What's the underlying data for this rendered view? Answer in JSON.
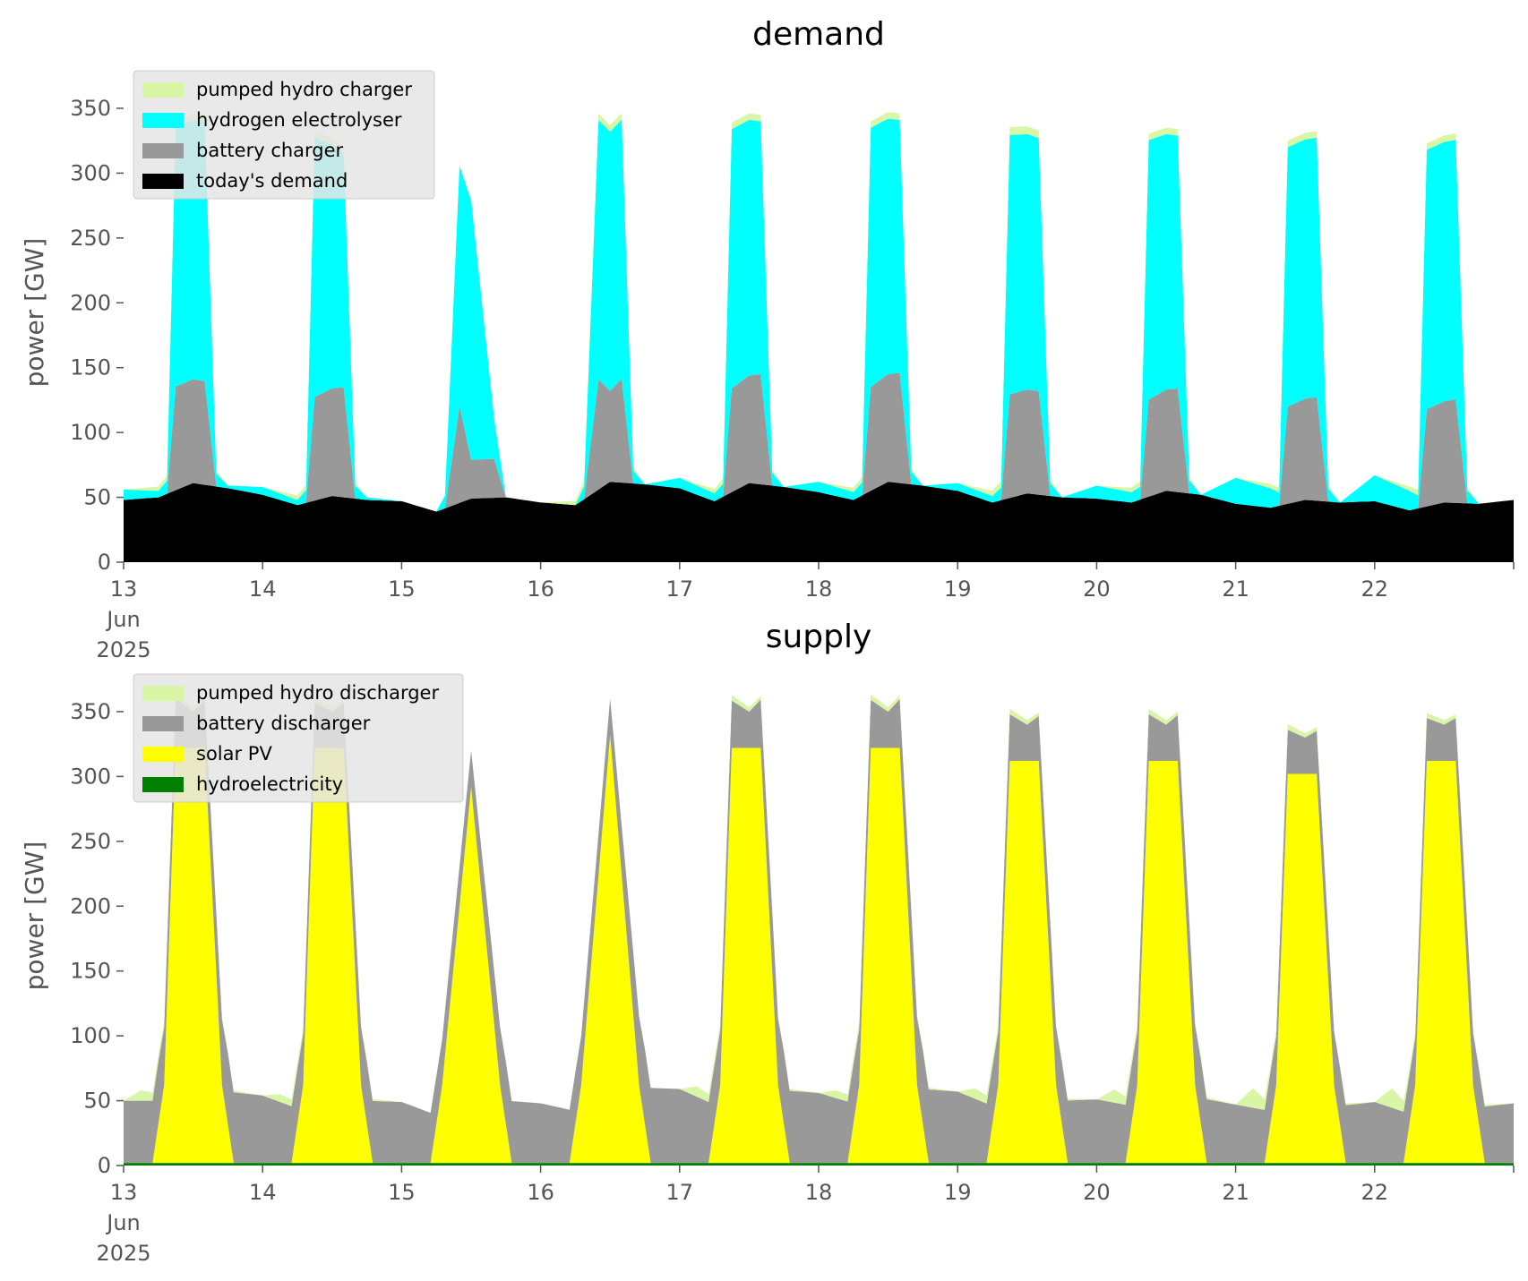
{
  "chart_data": [
    {
      "type": "area",
      "stacked": true,
      "title": "demand",
      "ylabel": "power [GW]",
      "ylim": [
        0,
        370
      ],
      "yticks": [
        0,
        50,
        100,
        150,
        200,
        250,
        300,
        350
      ],
      "xlim": [
        "2025-06-13 00:00",
        "2025-06-23 00:00"
      ],
      "xticks": [
        "13",
        "14",
        "15",
        "16",
        "17",
        "18",
        "19",
        "20",
        "21",
        "22"
      ],
      "xtick_first_sub": [
        "Jun",
        "2025"
      ],
      "grid": false,
      "legend_position": "top-left",
      "legend_order": [
        "pumped hydro charger",
        "hydrogen electrolyser",
        "battery charger",
        "today's demand"
      ],
      "series": [
        {
          "name": "today's demand",
          "color": "#000000",
          "x": [
            "13 00:00",
            "13 06:00",
            "13 12:00",
            "13 18:00",
            "14 00:00",
            "14 06:00",
            "14 12:00",
            "14 18:00",
            "15 00:00",
            "15 06:00",
            "15 12:00",
            "15 18:00",
            "16 00:00",
            "16 06:00",
            "16 12:00",
            "16 18:00",
            "17 00:00",
            "17 06:00",
            "17 12:00",
            "17 18:00",
            "18 00:00",
            "18 06:00",
            "18 12:00",
            "18 18:00",
            "19 00:00",
            "19 06:00",
            "19 12:00",
            "19 18:00",
            "20 00:00",
            "20 06:00",
            "20 12:00",
            "20 18:00",
            "21 00:00",
            "21 06:00",
            "21 12:00",
            "21 18:00",
            "22 00:00",
            "22 06:00",
            "22 12:00",
            "22 18:00",
            "23 00:00"
          ],
          "y": [
            48,
            50,
            61,
            57,
            52,
            44,
            51,
            48,
            47,
            39,
            49,
            50,
            46,
            44,
            62,
            60,
            57,
            47,
            61,
            58,
            54,
            48,
            62,
            59,
            55,
            46,
            53,
            50,
            49,
            46,
            55,
            52,
            45,
            42,
            48,
            46,
            47,
            40,
            46,
            45,
            48
          ]
        },
        {
          "name": "battery charger",
          "color": "#999999",
          "x": [
            "13 00:00",
            "13 06:00",
            "13 07:30",
            "13 09:00",
            "13 14:00",
            "13 16:00",
            "13 18:00",
            "14 00:00",
            "14 06:00",
            "14 07:30",
            "14 09:00",
            "14 14:00",
            "14 16:00",
            "14 18:00",
            "15 00:00",
            "15 06:00",
            "15 07:30",
            "15 10:00",
            "15 12:00",
            "15 16:00",
            "15 18:00",
            "16 00:00",
            "16 06:00",
            "16 07:30",
            "16 10:00",
            "16 12:00",
            "16 14:00",
            "16 16:00",
            "16 18:00",
            "17 00:00",
            "17 06:00",
            "17 07:30",
            "17 09:00",
            "17 14:00",
            "17 16:00",
            "17 18:00",
            "18 00:00",
            "18 06:00",
            "18 07:30",
            "18 09:00",
            "18 14:00",
            "18 16:00",
            "18 18:00",
            "19 00:00",
            "19 06:00",
            "19 07:30",
            "19 09:00",
            "19 14:00",
            "19 16:00",
            "19 18:00",
            "20 00:00",
            "20 06:00",
            "20 07:30",
            "20 09:00",
            "20 14:00",
            "20 16:00",
            "20 18:00",
            "21 00:00",
            "21 06:00",
            "21 07:30",
            "21 09:00",
            "21 14:00",
            "21 16:00",
            "21 18:00",
            "22 00:00",
            "22 06:00",
            "22 07:30",
            "22 09:00",
            "22 14:00",
            "22 16:00",
            "22 18:00",
            "23 00:00"
          ],
          "y": [
            0,
            0,
            0,
            80,
            80,
            0,
            0,
            0,
            0,
            0,
            80,
            85,
            0,
            0,
            0,
            0,
            0,
            75,
            30,
            30,
            0,
            0,
            0,
            0,
            85,
            70,
            80,
            0,
            0,
            0,
            0,
            0,
            80,
            85,
            0,
            0,
            0,
            0,
            0,
            80,
            85,
            0,
            0,
            0,
            0,
            0,
            80,
            80,
            0,
            0,
            0,
            0,
            0,
            75,
            80,
            0,
            0,
            0,
            0,
            0,
            75,
            80,
            0,
            0,
            0,
            0,
            0,
            75,
            80,
            0,
            0,
            0
          ]
        },
        {
          "name": "hydrogen electrolyser",
          "color": "#00ffff",
          "x": [
            "13 00:00",
            "13 06:00",
            "13 07:30",
            "13 09:00",
            "13 14:00",
            "13 16:00",
            "13 18:00",
            "14 00:00",
            "14 06:00",
            "14 07:30",
            "14 09:00",
            "14 14:00",
            "14 16:00",
            "14 18:00",
            "15 00:00",
            "15 06:00",
            "15 07:30",
            "15 10:00",
            "15 12:00",
            "15 16:00",
            "15 18:00",
            "16 00:00",
            "16 06:00",
            "16 07:30",
            "16 10:00",
            "16 12:00",
            "16 14:00",
            "16 16:00",
            "16 18:00",
            "17 00:00",
            "17 06:00",
            "17 07:30",
            "17 09:00",
            "17 14:00",
            "17 16:00",
            "17 18:00",
            "18 00:00",
            "18 06:00",
            "18 07:30",
            "18 09:00",
            "18 14:00",
            "18 16:00",
            "18 18:00",
            "19 00:00",
            "19 06:00",
            "19 07:30",
            "19 09:00",
            "19 14:00",
            "19 16:00",
            "19 18:00",
            "20 00:00",
            "20 06:00",
            "20 07:30",
            "20 09:00",
            "20 14:00",
            "20 16:00",
            "20 18:00",
            "21 00:00",
            "21 06:00",
            "21 07:30",
            "21 09:00",
            "21 14:00",
            "21 16:00",
            "21 18:00",
            "22 00:00",
            "22 06:00",
            "22 07:30",
            "22 09:00",
            "22 14:00",
            "22 16:00",
            "22 18:00",
            "23 00:00"
          ],
          "y": [
            8,
            5,
            10,
            200,
            200,
            10,
            2,
            6,
            4,
            10,
            200,
            180,
            10,
            2,
            0,
            0,
            10,
            185,
            200,
            30,
            0,
            0,
            0,
            10,
            200,
            200,
            200,
            10,
            0,
            8,
            6,
            10,
            200,
            195,
            10,
            0,
            8,
            6,
            10,
            200,
            195,
            10,
            0,
            6,
            5,
            10,
            200,
            195,
            10,
            0,
            10,
            8,
            10,
            200,
            195,
            10,
            0,
            20,
            15,
            10,
            200,
            200,
            10,
            0,
            20,
            15,
            10,
            200,
            200,
            10,
            0,
            0
          ]
        },
        {
          "name": "pumped hydro charger",
          "color": "#d9f5a6",
          "x": [
            "13 00:00",
            "13 09:00",
            "13 14:00",
            "13 18:00",
            "14 00:00",
            "14 09:00",
            "14 14:00",
            "14 18:00",
            "15 00:00",
            "16 00:00",
            "16 09:00",
            "16 14:00",
            "16 18:00",
            "17 00:00",
            "17 09:00",
            "17 14:00",
            "17 18:00",
            "18 00:00",
            "18 09:00",
            "18 14:00",
            "18 18:00",
            "19 00:00",
            "19 09:00",
            "19 14:00",
            "19 18:00",
            "20 00:00",
            "20 09:00",
            "20 14:00",
            "20 18:00",
            "21 00:00",
            "21 09:00",
            "21 14:00",
            "21 18:00",
            "22 00:00",
            "22 09:00",
            "22 14:00",
            "22 18:00",
            "23 00:00"
          ],
          "y": [
            0,
            5,
            5,
            0,
            0,
            5,
            5,
            0,
            0,
            0,
            5,
            5,
            0,
            0,
            5,
            5,
            0,
            0,
            5,
            5,
            0,
            0,
            6,
            6,
            0,
            0,
            5,
            5,
            0,
            0,
            5,
            5,
            0,
            0,
            5,
            5,
            0,
            0
          ]
        }
      ]
    },
    {
      "type": "area",
      "stacked": true,
      "title": "supply",
      "ylabel": "power [GW]",
      "ylim": [
        0,
        370
      ],
      "yticks": [
        0,
        50,
        100,
        150,
        200,
        250,
        300,
        350
      ],
      "xlim": [
        "2025-06-13 00:00",
        "2025-06-23 00:00"
      ],
      "xticks": [
        "13",
        "14",
        "15",
        "16",
        "17",
        "18",
        "19",
        "20",
        "21",
        "22"
      ],
      "xtick_first_sub": [
        "Jun",
        "2025"
      ],
      "grid": false,
      "legend_position": "top-left",
      "legend_order": [
        "pumped hydro discharger",
        "battery discharger",
        "solar PV",
        "hydroelectricity"
      ],
      "series": [
        {
          "name": "hydroelectricity",
          "color": "#008000",
          "x": [
            "13 00:00",
            "23 00:00"
          ],
          "y": [
            2,
            2
          ]
        },
        {
          "name": "solar PV",
          "color": "#ffff00",
          "x": [
            "13 00:00",
            "13 05:00",
            "13 07:00",
            "13 09:00",
            "13 14:00",
            "13 17:00",
            "13 19:00",
            "14 00:00",
            "14 05:00",
            "14 07:00",
            "14 09:00",
            "14 14:00",
            "14 17:00",
            "14 19:00",
            "15 00:00",
            "15 05:00",
            "15 07:00",
            "15 12:00",
            "15 17:00",
            "15 19:00",
            "16 00:00",
            "16 05:00",
            "16 07:00",
            "16 12:00",
            "16 17:00",
            "16 19:00",
            "17 00:00",
            "17 05:00",
            "17 07:00",
            "17 09:00",
            "17 14:00",
            "17 17:00",
            "17 19:00",
            "18 00:00",
            "18 05:00",
            "18 07:00",
            "18 09:00",
            "18 14:00",
            "18 17:00",
            "18 19:00",
            "19 00:00",
            "19 05:00",
            "19 07:00",
            "19 09:00",
            "19 14:00",
            "19 17:00",
            "19 19:00",
            "20 00:00",
            "20 05:00",
            "20 07:00",
            "20 09:00",
            "20 14:00",
            "20 17:00",
            "20 19:00",
            "21 00:00",
            "21 05:00",
            "21 07:00",
            "21 09:00",
            "21 14:00",
            "21 17:00",
            "21 19:00",
            "22 00:00",
            "22 05:00",
            "22 07:00",
            "22 09:00",
            "22 14:00",
            "22 17:00",
            "22 19:00",
            "23 00:00"
          ],
          "y": [
            0,
            0,
            60,
            320,
            320,
            60,
            0,
            0,
            0,
            60,
            320,
            320,
            60,
            0,
            0,
            0,
            60,
            290,
            60,
            0,
            0,
            0,
            60,
            330,
            60,
            0,
            0,
            0,
            60,
            320,
            320,
            60,
            0,
            0,
            0,
            60,
            320,
            320,
            60,
            0,
            0,
            0,
            60,
            310,
            310,
            60,
            0,
            0,
            0,
            60,
            310,
            310,
            60,
            0,
            0,
            0,
            60,
            300,
            300,
            60,
            0,
            0,
            0,
            60,
            310,
            310,
            60,
            0,
            0
          ]
        },
        {
          "name": "battery discharger",
          "color": "#999999",
          "x": [
            "13 00:00",
            "13 06:00",
            "13 12:00",
            "13 18:00",
            "14 00:00",
            "14 06:00",
            "14 12:00",
            "14 18:00",
            "15 00:00",
            "15 06:00",
            "15 12:00",
            "15 18:00",
            "16 00:00",
            "16 06:00",
            "16 12:00",
            "16 18:00",
            "17 00:00",
            "17 06:00",
            "17 12:00",
            "17 18:00",
            "18 00:00",
            "18 06:00",
            "18 12:00",
            "18 18:00",
            "19 00:00",
            "19 06:00",
            "19 12:00",
            "19 18:00",
            "20 00:00",
            "20 06:00",
            "20 12:00",
            "20 18:00",
            "21 00:00",
            "21 06:00",
            "21 12:00",
            "21 18:00",
            "22 00:00",
            "22 06:00",
            "22 12:00",
            "22 18:00",
            "23 00:00"
          ],
          "y": [
            48,
            48,
            28,
            55,
            52,
            42,
            28,
            48,
            47,
            37,
            28,
            48,
            46,
            40,
            28,
            58,
            57,
            45,
            28,
            56,
            54,
            46,
            28,
            57,
            55,
            44,
            28,
            48,
            49,
            44,
            28,
            50,
            45,
            40,
            28,
            44,
            47,
            38,
            28,
            43,
            46
          ]
        },
        {
          "name": "pumped hydro discharger",
          "color": "#d9f5a6",
          "x": [
            "13 00:00",
            "13 03:00",
            "13 06:00",
            "14 00:00",
            "14 03:00",
            "14 06:00",
            "15 00:00",
            "17 00:00",
            "17 03:00",
            "17 06:00",
            "18 00:00",
            "18 03:00",
            "18 06:00",
            "19 00:00",
            "19 03:00",
            "19 06:00",
            "20 00:00",
            "20 03:00",
            "20 06:00",
            "21 00:00",
            "21 03:00",
            "21 06:00",
            "22 00:00",
            "22 03:00",
            "22 06:00",
            "23 00:00"
          ],
          "y": [
            0,
            8,
            5,
            0,
            6,
            5,
            0,
            0,
            8,
            5,
            0,
            6,
            5,
            0,
            8,
            5,
            0,
            10,
            5,
            0,
            15,
            5,
            0,
            15,
            5,
            0
          ]
        }
      ]
    }
  ]
}
